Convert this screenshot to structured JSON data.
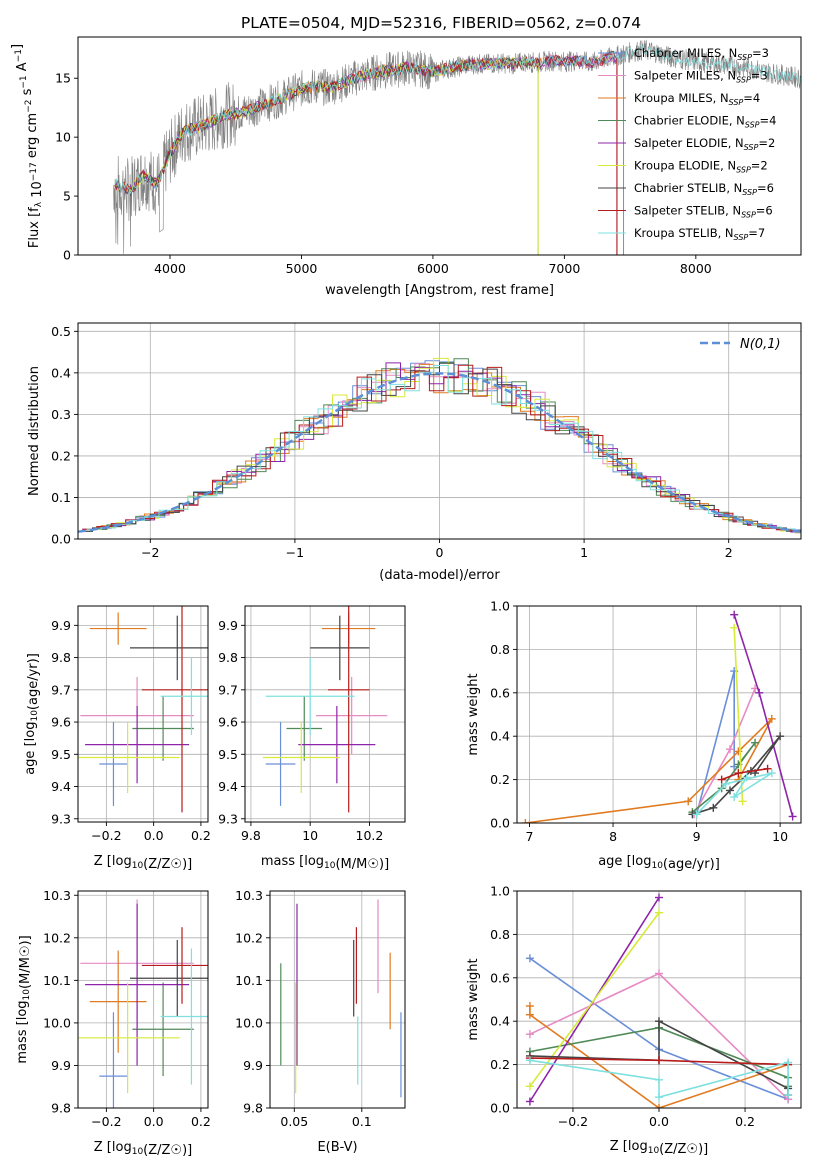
{
  "figure_title": "PLATE=0504, MJD=52316, FIBERID=0562, z=0.074",
  "series_colors": [
    "#1f77b4"
  ],
  "models": [
    {
      "name": "Chabrier MILES",
      "nssp": "3",
      "color": "#6a8fd8"
    },
    {
      "name": "Salpeter MILES",
      "nssp": "3",
      "color": "#e68ac4"
    },
    {
      "name": "Kroupa MILES",
      "nssp": "4",
      "color": "#e07b20"
    },
    {
      "name": "Chabrier ELODIE",
      "nssp": "4",
      "color": "#4f8a57"
    },
    {
      "name": "Salpeter ELODIE",
      "nssp": "2",
      "color": "#8e24aa"
    },
    {
      "name": "Kroupa ELODIE",
      "nssp": "2",
      "color": "#d7ea3a"
    },
    {
      "name": "Chabrier STELIB",
      "nssp": "6",
      "color": "#444444"
    },
    {
      "name": "Salpeter STELIB",
      "nssp": "6",
      "color": "#b71c1c"
    },
    {
      "name": "Kroupa STELIB",
      "nssp": "7",
      "color": "#7fe0e0"
    }
  ],
  "legend_suffix": "N",
  "legend_sub": "SSP",
  "chart_data": [
    {
      "id": "spectrum",
      "type": "line",
      "xlabel": "wavelength [Angstrom, rest frame]",
      "ylabel": "Flux [f_λ 10^-17 erg cm^-2 s^-1 A^-1]",
      "xlim": [
        3300,
        8800
      ],
      "ylim": [
        0,
        18.5
      ],
      "xticks": [
        4000,
        5000,
        6000,
        7000,
        8000
      ],
      "yticks": [
        0,
        5,
        10,
        15
      ],
      "data_color": "#808080",
      "continuum": [
        [
          3570,
          6
        ],
        [
          3700,
          5.5
        ],
        [
          3800,
          6.8
        ],
        [
          3900,
          6
        ],
        [
          4000,
          8.6
        ],
        [
          4100,
          10.5
        ],
        [
          4200,
          10.8
        ],
        [
          4300,
          11.2
        ],
        [
          4400,
          11.8
        ],
        [
          4500,
          12
        ],
        [
          4600,
          12.3
        ],
        [
          4700,
          12.7
        ],
        [
          4800,
          13.1
        ],
        [
          4900,
          13.6
        ],
        [
          5000,
          14.1
        ],
        [
          5100,
          14.3
        ],
        [
          5200,
          14.2
        ],
        [
          5300,
          14.5
        ],
        [
          5400,
          15
        ],
        [
          5500,
          15.3
        ],
        [
          5600,
          15.6
        ],
        [
          5700,
          15.7
        ],
        [
          5800,
          15.9
        ],
        [
          5900,
          15.8
        ],
        [
          6000,
          15.5
        ],
        [
          6100,
          15.8
        ],
        [
          6200,
          16
        ],
        [
          6300,
          16.2
        ],
        [
          6400,
          16.2
        ],
        [
          6500,
          16.3
        ],
        [
          6600,
          16.2
        ],
        [
          6700,
          16.4
        ],
        [
          6800,
          16.3
        ],
        [
          6900,
          16.5
        ],
        [
          7000,
          16.4
        ],
        [
          7100,
          16.5
        ],
        [
          7200,
          16.3
        ],
        [
          7300,
          16.6
        ],
        [
          7400,
          16.9
        ],
        [
          7500,
          17.2
        ],
        [
          7600,
          17.4
        ],
        [
          7700,
          17.2
        ],
        [
          7800,
          16.8
        ],
        [
          7900,
          16.6
        ],
        [
          8000,
          16.4
        ],
        [
          8100,
          16.3
        ],
        [
          8200,
          16.2
        ],
        [
          8300,
          16.0
        ],
        [
          8400,
          15.9
        ],
        [
          8500,
          15.6
        ],
        [
          8600,
          15.4
        ],
        [
          8700,
          15.2
        ],
        [
          8800,
          15.0
        ]
      ],
      "model_end": [
        7450,
        7400,
        7400,
        6800,
        7400,
        6800,
        7400,
        7400,
        8800
      ]
    },
    {
      "id": "residuals",
      "type": "histogram",
      "xlabel": "(data-model)/error",
      "ylabel": "Normed distribution",
      "xlim": [
        -2.5,
        2.5
      ],
      "ylim": [
        0,
        0.52
      ],
      "xticks": [
        -2,
        -1,
        0,
        1,
        2
      ],
      "yticks": [
        0.0,
        0.1,
        0.2,
        0.3,
        0.4,
        0.5
      ],
      "xtick_labels": [
        "−2",
        "−1",
        "0",
        "1",
        "2"
      ],
      "bin_width": 0.1,
      "gaussian_label": "N(0,1)",
      "gaussian_color": "#5b8fd6"
    },
    {
      "id": "age-vs-Z",
      "type": "errorbar",
      "xlabel": "Z [log10(Z/Z☉)]",
      "ylabel": "age [log10(age/yr)]",
      "xlim": [
        -0.32,
        0.23
      ],
      "ylim": [
        9.29,
        9.96
      ],
      "xticks": [
        -0.2,
        0.0,
        0.2
      ],
      "xtick_labels": [
        "−0.2",
        "0.0",
        "0.2"
      ],
      "yticks": [
        9.3,
        9.4,
        9.5,
        9.6,
        9.7,
        9.8,
        9.9
      ],
      "points": [
        [
          -0.17,
          9.47,
          0.06,
          0.13
        ],
        [
          -0.07,
          9.62,
          0.24,
          0.12
        ],
        [
          -0.15,
          9.89,
          0.12,
          0.05
        ],
        [
          0.04,
          9.58,
          0.13,
          0.1
        ],
        [
          -0.07,
          9.53,
          0.22,
          0.12
        ],
        [
          -0.11,
          9.49,
          0.22,
          0.11
        ],
        [
          0.1,
          9.83,
          0.2,
          0.1
        ],
        [
          0.12,
          9.7,
          0.17,
          0.38
        ],
        [
          0.16,
          9.68,
          0.13,
          0.12
        ]
      ]
    },
    {
      "id": "age-vs-mass",
      "type": "errorbar",
      "xlabel": "mass [log10(M/M☉)]",
      "ylabel": "",
      "xlim": [
        9.78,
        10.32
      ],
      "ylim": [
        9.29,
        9.96
      ],
      "xticks": [
        9.8,
        10.0,
        10.2
      ],
      "yticks": [
        9.3,
        9.4,
        9.5,
        9.6,
        9.7,
        9.8,
        9.9
      ],
      "points": [
        [
          9.9,
          9.47,
          0.05,
          0.13
        ],
        [
          10.14,
          9.62,
          0.12,
          0.12
        ],
        [
          10.13,
          9.89,
          0.09,
          0.05
        ],
        [
          9.98,
          9.58,
          0.06,
          0.1
        ],
        [
          10.09,
          9.53,
          0.13,
          0.12
        ],
        [
          9.97,
          9.49,
          0.13,
          0.11
        ],
        [
          10.1,
          9.83,
          0.1,
          0.1
        ],
        [
          10.13,
          9.7,
          0.07,
          0.38
        ],
        [
          10.0,
          9.68,
          0.15,
          0.12
        ]
      ]
    },
    {
      "id": "mass-vs-Z",
      "type": "errorbar",
      "xlabel": "Z [log10(Z/Z☉)]",
      "ylabel": "mass [log10(M/M☉)]",
      "xlim": [
        -0.32,
        0.23
      ],
      "ylim": [
        9.8,
        10.31
      ],
      "xticks": [
        -0.2,
        0.0,
        0.2
      ],
      "xtick_labels": [
        "−0.2",
        "0.0",
        "0.2"
      ],
      "yticks": [
        9.8,
        9.9,
        10.0,
        10.1,
        10.2,
        10.3
      ],
      "points": [
        [
          -0.17,
          9.875,
          0.06,
          0.15
        ],
        [
          -0.07,
          10.14,
          0.24,
          0.15
        ],
        [
          -0.15,
          10.05,
          0.12,
          0.12
        ],
        [
          0.04,
          9.985,
          0.13,
          0.11
        ],
        [
          -0.07,
          10.09,
          0.22,
          0.19
        ],
        [
          -0.11,
          9.965,
          0.22,
          0.13
        ],
        [
          0.1,
          10.105,
          0.2,
          0.09
        ],
        [
          0.12,
          10.135,
          0.17,
          0.09
        ],
        [
          0.16,
          10.015,
          0.13,
          0.16
        ]
      ]
    },
    {
      "id": "mass-vs-ebv",
      "type": "errorbar",
      "xlabel": "E(B-V)",
      "ylabel": "",
      "xlim": [
        0.032,
        0.132
      ],
      "ylim": [
        9.8,
        10.31
      ],
      "xticks": [
        0.05,
        0.1
      ],
      "yticks": [
        9.8,
        9.9,
        10.0,
        10.1,
        10.2,
        10.3
      ],
      "points": [
        [
          0.129,
          9.925,
          0.0,
          0.1
        ],
        [
          0.112,
          10.18,
          0.0,
          0.11
        ],
        [
          0.121,
          10.075,
          0.0,
          0.09
        ],
        [
          0.04,
          10.02,
          0.0,
          0.12
        ],
        [
          0.052,
          10.09,
          0.0,
          0.19
        ],
        [
          0.051,
          9.965,
          0.0,
          0.13
        ],
        [
          0.094,
          10.105,
          0.0,
          0.09
        ],
        [
          0.096,
          10.135,
          0.0,
          0.09
        ],
        [
          0.097,
          9.935,
          0.0,
          0.08
        ]
      ]
    },
    {
      "id": "weight-vs-age",
      "type": "line",
      "xlabel": "age [log10(age/yr)]",
      "ylabel": "mass weight",
      "xlim": [
        6.85,
        10.25
      ],
      "ylim": [
        0,
        1.0
      ],
      "xticks": [
        7,
        8,
        9,
        10
      ],
      "yticks": [
        0.0,
        0.2,
        0.4,
        0.6,
        0.8,
        1.0
      ],
      "lines": [
        [
          [
            9.0,
            0.04
          ],
          [
            9.45,
            0.7
          ],
          [
            9.45,
            0.26
          ]
        ],
        [
          [
            8.97,
            0.04
          ],
          [
            9.4,
            0.34
          ],
          [
            9.7,
            0.62
          ]
        ],
        [
          [
            6.95,
            0.0
          ],
          [
            8.9,
            0.1
          ],
          [
            9.5,
            0.33
          ],
          [
            9.9,
            0.48
          ],
          [
            9.5,
            0.2
          ]
        ],
        [
          [
            8.95,
            0.05
          ],
          [
            9.3,
            0.16
          ],
          [
            9.7,
            0.37
          ],
          [
            9.5,
            0.27
          ]
        ],
        [
          [
            9.45,
            0.96
          ],
          [
            9.75,
            0.6
          ],
          [
            10.15,
            0.03
          ]
        ],
        [
          [
            9.45,
            0.9
          ],
          [
            9.55,
            0.1
          ]
        ],
        [
          [
            8.95,
            0.04
          ],
          [
            9.2,
            0.07
          ],
          [
            9.4,
            0.15
          ],
          [
            9.65,
            0.24
          ],
          [
            10.0,
            0.4
          ],
          [
            9.7,
            0.23
          ]
        ],
        [
          [
            9.3,
            0.2
          ],
          [
            9.5,
            0.23
          ],
          [
            9.85,
            0.25
          ]
        ],
        [
          [
            9.0,
            0.04
          ],
          [
            9.35,
            0.18
          ],
          [
            9.9,
            0.23
          ],
          [
            9.45,
            0.12
          ],
          [
            9.6,
            0.21
          ]
        ]
      ]
    },
    {
      "id": "weight-vs-Z",
      "type": "line",
      "xlabel": "Z [log10(Z/Z☉)]",
      "ylabel": "mass weight",
      "xlim": [
        -0.33,
        0.33
      ],
      "ylim": [
        0,
        1.0
      ],
      "xticks": [
        -0.2,
        0.0,
        0.2
      ],
      "xtick_labels": [
        "−0.2",
        "0.0",
        "0.2"
      ],
      "yticks": [
        0.0,
        0.2,
        0.4,
        0.6,
        0.8,
        1.0
      ],
      "lines": [
        [
          [
            -0.3,
            0.69
          ],
          [
            0.0,
            0.27
          ],
          [
            0.3,
            0.04
          ]
        ],
        [
          [
            -0.3,
            0.34
          ],
          [
            0.0,
            0.62
          ],
          [
            0.3,
            0.04
          ]
        ],
        [
          [
            -0.3,
            0.47
          ],
          [
            -0.3,
            0.43
          ],
          [
            0.0,
            0.0
          ],
          [
            0.3,
            0.2
          ]
        ],
        [
          [
            -0.3,
            0.26
          ],
          [
            0.0,
            0.37
          ],
          [
            0.3,
            0.14
          ],
          [
            0.3,
            0.1
          ]
        ],
        [
          [
            -0.3,
            0.03
          ],
          [
            0.0,
            0.97
          ]
        ],
        [
          [
            -0.3,
            0.1
          ],
          [
            0.0,
            0.9
          ]
        ],
        [
          [
            -0.3,
            0.24
          ],
          [
            0.0,
            0.22
          ],
          [
            0.0,
            0.4
          ],
          [
            0.3,
            0.09
          ],
          [
            0.3,
            0.06
          ]
        ],
        [
          [
            -0.3,
            0.23
          ],
          [
            0.0,
            0.22
          ],
          [
            0.3,
            0.2
          ]
        ],
        [
          [
            -0.3,
            0.22
          ],
          [
            0.0,
            0.13
          ],
          [
            0.0,
            0.05
          ],
          [
            0.3,
            0.21
          ],
          [
            0.3,
            0.06
          ]
        ]
      ]
    }
  ]
}
